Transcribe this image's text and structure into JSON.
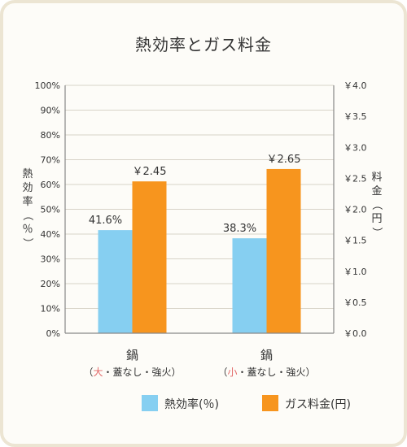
{
  "chart_data": {
    "type": "bar",
    "title": "熱効率とガス料金",
    "categories": [
      {
        "line1": "鍋",
        "line2_open": "（",
        "line2_size": "大",
        "line2_rest": "・蓋なし・強火",
        "line2_close": "）"
      },
      {
        "line1": "鍋",
        "line2_open": "（",
        "line2_size": "小",
        "line2_rest": "・蓋なし・強火",
        "line2_close": "）"
      }
    ],
    "series": [
      {
        "name": "熱効率(％)",
        "axis": "left",
        "color": "#86cff1",
        "values": [
          41.6,
          38.3
        ],
        "labels": [
          "41.6%",
          "38.3%"
        ]
      },
      {
        "name": "ガス料金(円)",
        "axis": "right",
        "color": "#f7951e",
        "values": [
          2.45,
          2.65
        ],
        "labels": [
          "￥2.45",
          "￥2.65"
        ]
      }
    ],
    "y_left": {
      "label": "熱効率（％）",
      "ylim": [
        0,
        100
      ],
      "ticks": [
        "0%",
        "10%",
        "20%",
        "30%",
        "40%",
        "50%",
        "60%",
        "70%",
        "80%",
        "90%",
        "100%"
      ]
    },
    "y_right": {
      "label": "料金（円）",
      "ylim": [
        0,
        4.0
      ],
      "ticks": [
        "￥0.0",
        "￥0.5",
        "￥1.0",
        "￥1.5",
        "￥2.0",
        "￥2.5",
        "￥3.0",
        "￥3.5",
        "￥4.0"
      ]
    },
    "gridlines": true,
    "legend_position": "bottom-right",
    "highlight_color": "#e36a6a"
  }
}
